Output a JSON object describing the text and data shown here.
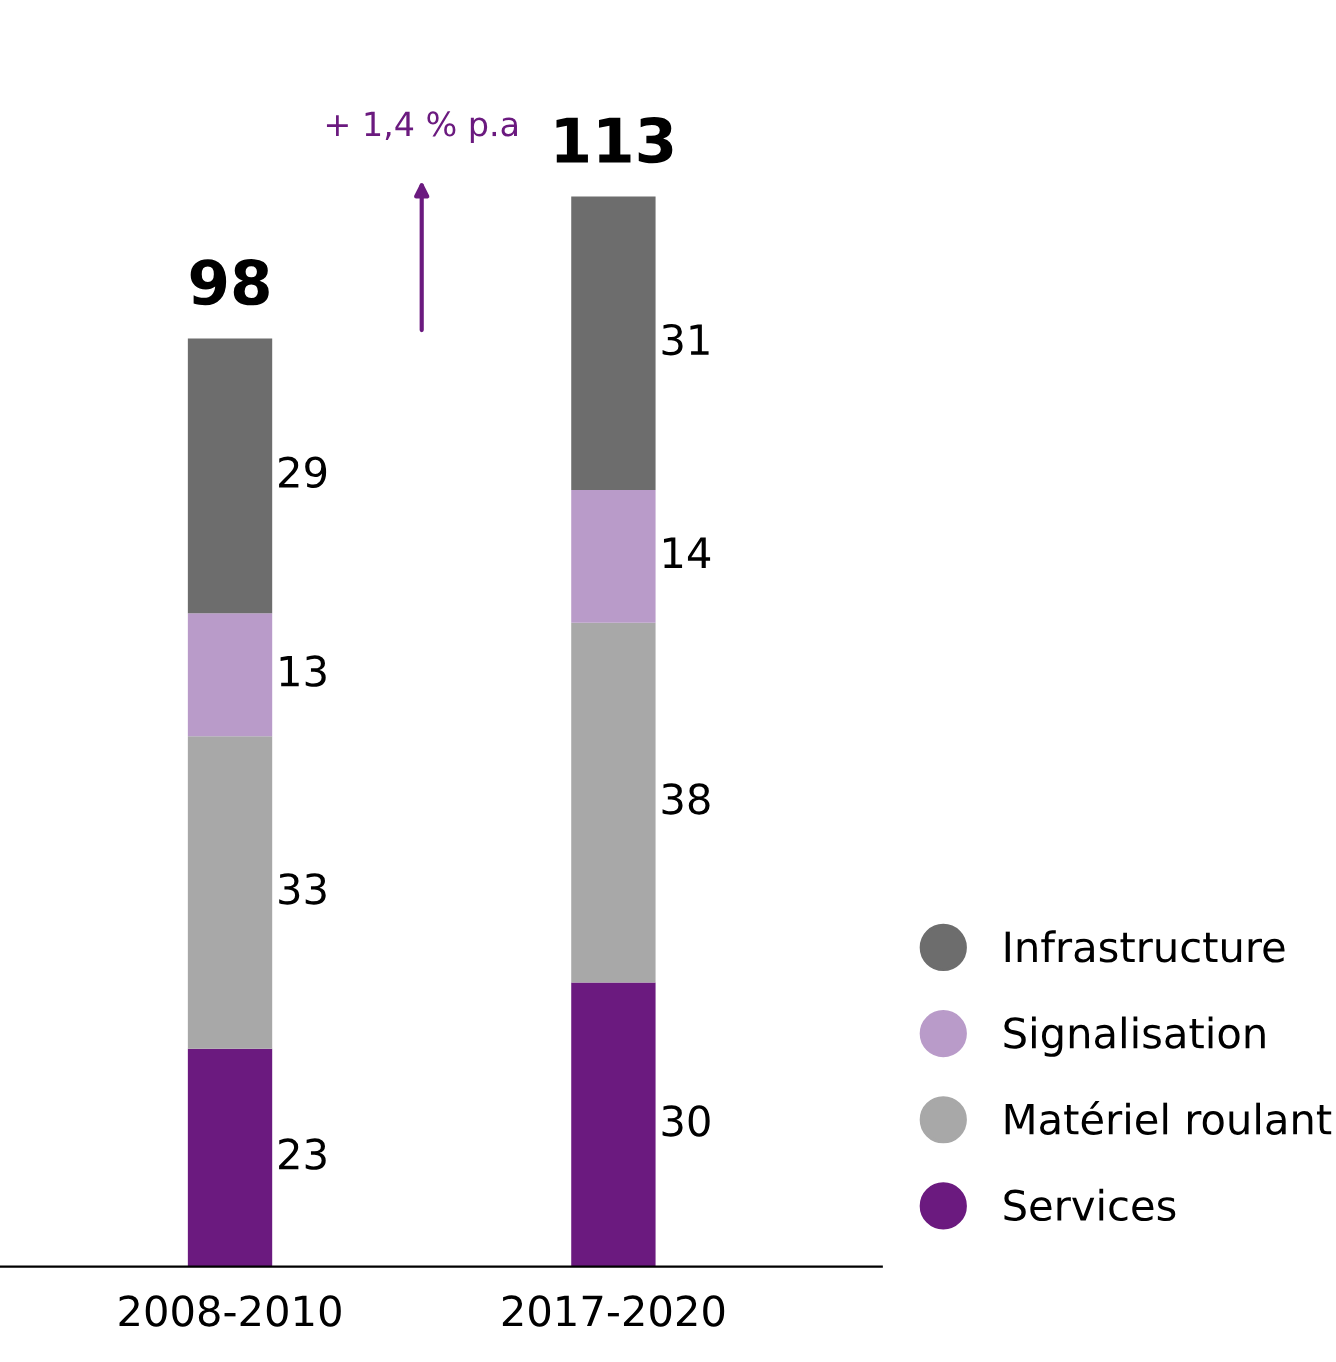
{
  "chart_data": {
    "type": "bar",
    "stacked": true,
    "categories": [
      "2008-2010",
      "2017-2020"
    ],
    "series": [
      {
        "name": "Services",
        "color": "#6b1a7f",
        "values": [
          23,
          30
        ]
      },
      {
        "name": "Matériel roulant",
        "color": "#a8a8a8",
        "values": [
          33,
          38
        ]
      },
      {
        "name": "Signalisation",
        "color": "#b99bc9",
        "values": [
          13,
          14
        ]
      },
      {
        "name": "Infrastructure",
        "color": "#6d6d6d",
        "values": [
          29,
          31
        ]
      }
    ],
    "data_labels": true,
    "totals": [
      "98",
      "113"
    ],
    "legend": "bottom right",
    "grid": false,
    "annotations": [
      "+ 1,4 % p.a"
    ]
  }
}
